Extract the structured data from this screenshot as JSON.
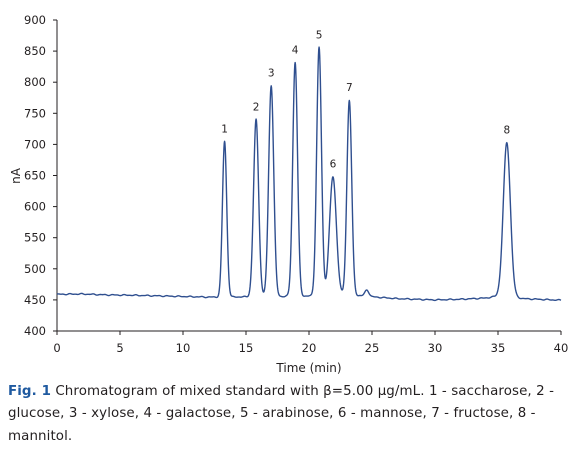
{
  "chart_data": {
    "type": "line",
    "title": "",
    "xlabel": "Time (min)",
    "ylabel": "nA",
    "xlim": [
      0,
      40
    ],
    "ylim": [
      400,
      900
    ],
    "x_ticks": [
      0,
      5,
      10,
      15,
      20,
      25,
      30,
      35,
      40
    ],
    "y_ticks": [
      400,
      450,
      500,
      550,
      600,
      650,
      700,
      750,
      800,
      850,
      900
    ],
    "grid": false,
    "line_color": "#2f4f8f",
    "baseline": [
      [
        0,
        459
      ],
      [
        2,
        459.5
      ],
      [
        4,
        458
      ],
      [
        6,
        457.5
      ],
      [
        8,
        456.5
      ],
      [
        10,
        455.5
      ],
      [
        12,
        454.5
      ],
      [
        13,
        454.5
      ],
      [
        24,
        457
      ],
      [
        25,
        455
      ],
      [
        27,
        452
      ],
      [
        30,
        450
      ],
      [
        32,
        451
      ],
      [
        34,
        453
      ],
      [
        35,
        456
      ],
      [
        36,
        456
      ],
      [
        37,
        452
      ],
      [
        40,
        449.5
      ]
    ],
    "peaks": [
      {
        "label": "1",
        "x": 13.3,
        "y": 705
      },
      {
        "label": "2",
        "x": 15.8,
        "y": 740
      },
      {
        "label": "3",
        "x": 17.0,
        "y": 795
      },
      {
        "label": "4",
        "x": 18.9,
        "y": 832
      },
      {
        "label": "5",
        "x": 20.8,
        "y": 856
      },
      {
        "label": "6",
        "x": 21.9,
        "y": 648
      },
      {
        "label": "7",
        "x": 23.2,
        "y": 771
      },
      {
        "label": "8",
        "x": 35.7,
        "y": 703
      }
    ],
    "minor_peak": {
      "x": 24.6,
      "y": 466
    }
  },
  "caption": {
    "label": "Fig. 1",
    "text": "Chromatogram of mixed standard with β=5.00 μg/mL. 1 - saccharose, 2 - glucose, 3 - xylose, 4 - galactose, 5 - arabinose, 6 - mannose, 7 - fructose, 8 - mannitol."
  }
}
